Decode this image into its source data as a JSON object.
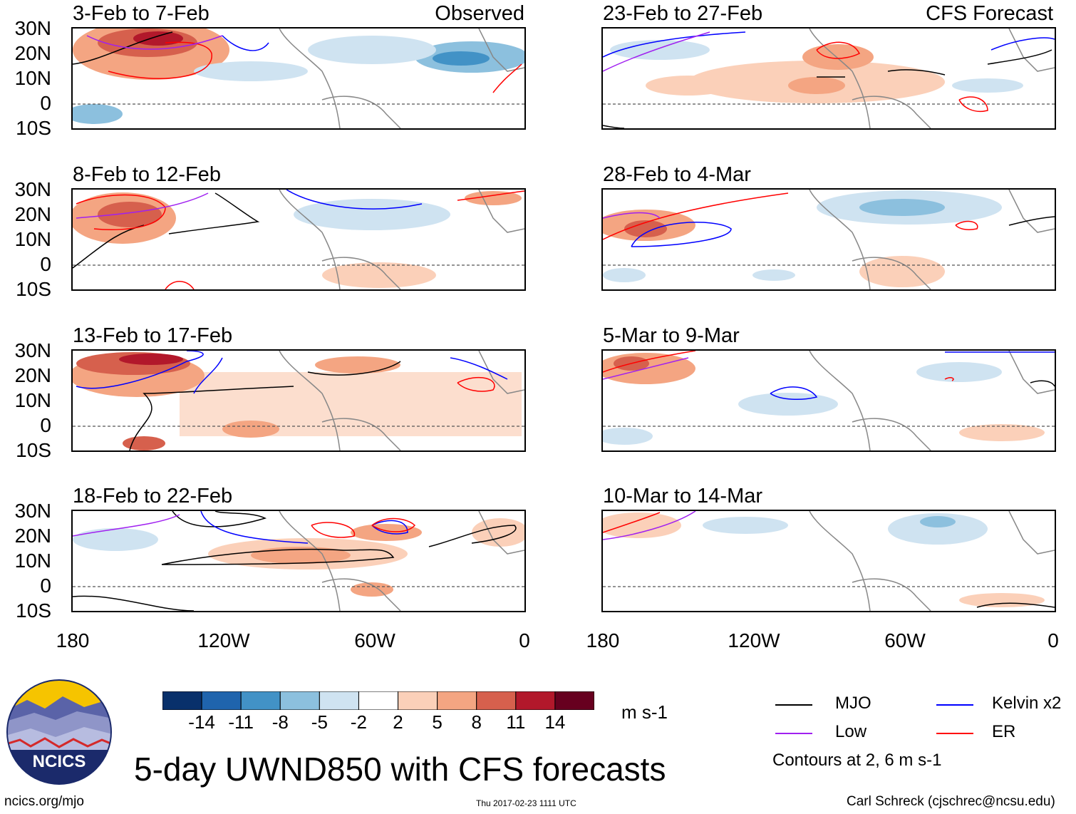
{
  "header_labels": {
    "observed": "Observed",
    "forecast": "CFS Forecast"
  },
  "left_panels": [
    {
      "title": "3-Feb to 7-Feb"
    },
    {
      "title": "8-Feb to 12-Feb"
    },
    {
      "title": "13-Feb to 17-Feb"
    },
    {
      "title": "18-Feb to 22-Feb"
    }
  ],
  "right_panels": [
    {
      "title": "23-Feb to 27-Feb"
    },
    {
      "title": "28-Feb to 4-Mar"
    },
    {
      "title": "5-Mar to 9-Mar"
    },
    {
      "title": "10-Mar to 14-Mar"
    }
  ],
  "lat_labels": [
    "30N",
    "20N",
    "10N",
    "0",
    "10S"
  ],
  "lon_labels": [
    "180",
    "120W",
    "60W",
    "0"
  ],
  "colorbar": {
    "ticks": [
      "-14",
      "-11",
      "-8",
      "-5",
      "-2",
      "2",
      "5",
      "8",
      "11",
      "14"
    ],
    "colors": [
      "#08306b",
      "#1f64ad",
      "#4292c6",
      "#8cc0de",
      "#cfe3f1",
      "#ffffff",
      "#fbd0b9",
      "#f4a582",
      "#d6604d",
      "#b2182b",
      "#67001f"
    ],
    "units": "m s-1"
  },
  "legend": {
    "items": [
      {
        "label": "MJO",
        "color": "#000000"
      },
      {
        "label": "Kelvin x2",
        "color": "#0000ff"
      },
      {
        "label": "Low",
        "color": "#a020f0"
      },
      {
        "label": "ER",
        "color": "#ff0000"
      }
    ],
    "note": "Contours at 2, 6 m s-1"
  },
  "logo_text": "NCICS",
  "main_title": "5-day UWND850 with CFS forecasts",
  "footer": {
    "url": "ncics.org/mjo",
    "timestamp": "Thu 2017-02-23 1111 UTC",
    "author": "Carl Schreck (cjschrec@ncsu.edu)"
  }
}
